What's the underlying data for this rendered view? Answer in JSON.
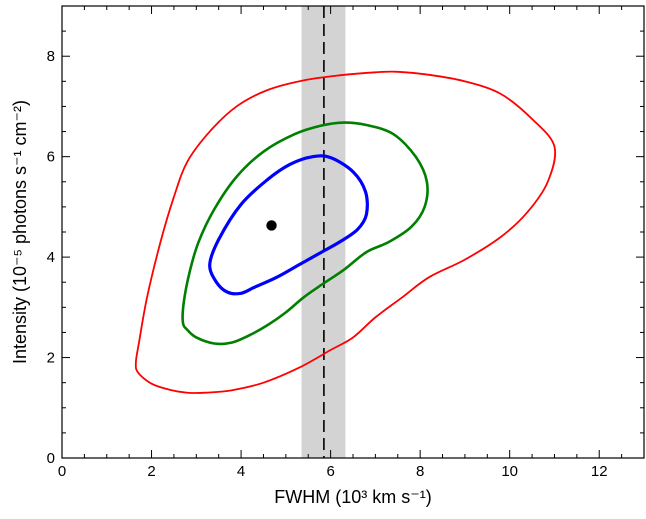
{
  "chart_data": {
    "type": "line",
    "title": "",
    "xlabel": "FWHM (10³ km s⁻¹)",
    "ylabel": "Intensity (10⁻⁵ photons s⁻¹ cm⁻²)",
    "xlim": [
      0,
      13
    ],
    "ylim": [
      0,
      9
    ],
    "x_ticks": [
      0,
      2,
      4,
      6,
      8,
      10,
      12
    ],
    "y_ticks": [
      0,
      2,
      4,
      6,
      8
    ],
    "x_tick_labels": [
      "0",
      "2",
      "4",
      "6",
      "8",
      "10",
      "12"
    ],
    "y_tick_labels": [
      "0",
      "2",
      "4",
      "6",
      "8"
    ],
    "x_minor_step": 0.5,
    "y_minor_step": 0.5,
    "grid": false,
    "best_fit_point": {
      "x": 4.68,
      "y": 4.63,
      "color": "#000000"
    },
    "reference_line": {
      "x": 5.85,
      "style": "dashed",
      "color": "#000000"
    },
    "reference_band": {
      "x_min": 5.35,
      "x_max": 6.33,
      "color": "#d3d3d3"
    },
    "series": [
      {
        "color": "#ff0000",
        "x": [
          1.65,
          1.72,
          1.9,
          2.2,
          2.5,
          2.8,
          3.3,
          3.9,
          4.6,
          5.4,
          6.2,
          7.0,
          7.5,
          8.2,
          9.0,
          9.8,
          10.5,
          11.0,
          10.85,
          10.4,
          9.8,
          9.0,
          8.2,
          7.6,
          7.0,
          6.5,
          6.0,
          5.3,
          4.5,
          3.8,
          3.2,
          2.8,
          2.4,
          2.0,
          1.7,
          1.65
        ],
        "y": [
          1.9,
          2.3,
          3.2,
          4.3,
          5.2,
          5.9,
          6.5,
          7.0,
          7.33,
          7.52,
          7.62,
          7.68,
          7.69,
          7.63,
          7.5,
          7.25,
          6.75,
          6.2,
          5.5,
          4.9,
          4.4,
          3.95,
          3.6,
          3.2,
          2.8,
          2.4,
          2.15,
          1.8,
          1.5,
          1.35,
          1.3,
          1.3,
          1.36,
          1.48,
          1.7,
          1.9
        ]
      },
      {
        "color": "#008000",
        "x": [
          2.7,
          2.72,
          2.85,
          3.05,
          3.4,
          3.9,
          4.5,
          5.2,
          5.8,
          6.3,
          6.8,
          7.4,
          7.9,
          8.15,
          8.1,
          7.8,
          7.3,
          6.8,
          6.3,
          5.8,
          5.4,
          5.0,
          4.6,
          4.2,
          3.8,
          3.4,
          3.0,
          2.8,
          2.7
        ],
        "y": [
          2.7,
          3.1,
          3.7,
          4.3,
          4.95,
          5.6,
          6.1,
          6.45,
          6.62,
          6.68,
          6.63,
          6.45,
          6.0,
          5.5,
          5.0,
          4.6,
          4.3,
          4.1,
          3.75,
          3.45,
          3.2,
          2.9,
          2.65,
          2.45,
          2.3,
          2.28,
          2.4,
          2.55,
          2.7
        ]
      },
      {
        "color": "#0000ff",
        "x": [
          3.3,
          3.5,
          4.0,
          4.6,
          5.1,
          5.6,
          6.0,
          6.5,
          6.78,
          6.8,
          6.6,
          6.2,
          5.8,
          5.3,
          4.8,
          4.3,
          4.0,
          3.7,
          3.45,
          3.3
        ],
        "y": [
          3.85,
          4.35,
          5.05,
          5.55,
          5.85,
          6.0,
          5.98,
          5.7,
          5.3,
          4.85,
          4.55,
          4.3,
          4.1,
          3.85,
          3.6,
          3.4,
          3.28,
          3.3,
          3.5,
          3.85
        ]
      }
    ]
  }
}
